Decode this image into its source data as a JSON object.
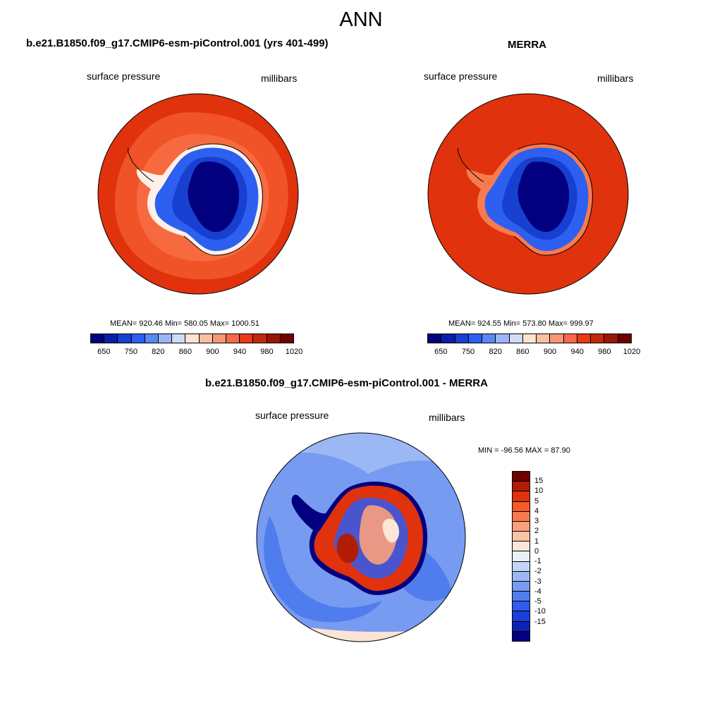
{
  "figure": {
    "title": "ANN"
  },
  "left_panel": {
    "title": "b.e21.B1850.f09_g17.CMIP6-esm-piControl.001 (yrs 401-499)",
    "variable": "surface pressure",
    "units": "millibars",
    "stats": "MEAN= 920.46  Min= 580.05  Max= 1000.51"
  },
  "right_panel": {
    "title": "MERRA",
    "variable": "surface pressure",
    "units": "millibars",
    "stats": "MEAN= 924.55  Min= 573.80  Max= 999.97"
  },
  "diff_panel": {
    "title": "b.e21.B1850.f09_g17.CMIP6-esm-piControl.001 - MERRA",
    "variable": "surface pressure",
    "units": "millibars",
    "stats": "MIN = -96.56 MAX =  87.90"
  },
  "abs_colorbar": {
    "colors": [
      "#02007e",
      "#0a1fa6",
      "#1740d0",
      "#2d5ff0",
      "#5b88f2",
      "#9bb6f6",
      "#cfdcf9",
      "#fde3d2",
      "#fbbfa3",
      "#f9967a",
      "#f66a4b",
      "#e83a15",
      "#c12a0a",
      "#9a1606",
      "#6e0000"
    ],
    "tick_labels": [
      "650",
      "750",
      "820",
      "860",
      "900",
      "940",
      "980",
      "1020"
    ]
  },
  "diff_colorbar": {
    "colors": [
      "#6e0000",
      "#b21c05",
      "#e0320c",
      "#f65a28",
      "#f77b4f",
      "#f9a07c",
      "#fbc3a6",
      "#fde6d6",
      "#eaf1fb",
      "#c3d5f7",
      "#9cb8f4",
      "#769bf1",
      "#4f7ded",
      "#2f5cf0",
      "#1c3fd8",
      "#0e23b4",
      "#02007e"
    ],
    "tick_labels": [
      "15",
      "10",
      "5",
      "4",
      "3",
      "2",
      "1",
      "0",
      "-1",
      "-2",
      "-3",
      "-4",
      "-5",
      "-10",
      "-15"
    ]
  },
  "chart_data": [
    {
      "type": "heatmap",
      "title": "b.e21.B1850.f09_g17.CMIP6-esm-piControl.001 (yrs 401-499)",
      "variable": "surface pressure",
      "units": "millibars",
      "projection": "south polar stereographic",
      "mean": 920.46,
      "min": 580.05,
      "max": 1000.51,
      "contour_levels": [
        650,
        700,
        750,
        800,
        820,
        840,
        860,
        880,
        900,
        920,
        940,
        960,
        980,
        1000,
        1020
      ]
    },
    {
      "type": "heatmap",
      "title": "MERRA",
      "variable": "surface pressure",
      "units": "millibars",
      "projection": "south polar stereographic",
      "mean": 924.55,
      "min": 573.8,
      "max": 999.97,
      "contour_levels": [
        650,
        700,
        750,
        800,
        820,
        840,
        860,
        880,
        900,
        920,
        940,
        960,
        980,
        1000,
        1020
      ]
    },
    {
      "type": "heatmap",
      "title": "b.e21.B1850.f09_g17.CMIP6-esm-piControl.001 - MERRA",
      "variable": "surface pressure",
      "units": "millibars",
      "projection": "south polar stereographic",
      "min": -96.56,
      "max": 87.9,
      "contour_levels": [
        -15,
        -10,
        -5,
        -4,
        -3,
        -2,
        -1,
        0,
        1,
        2,
        3,
        4,
        5,
        10,
        15
      ]
    }
  ]
}
